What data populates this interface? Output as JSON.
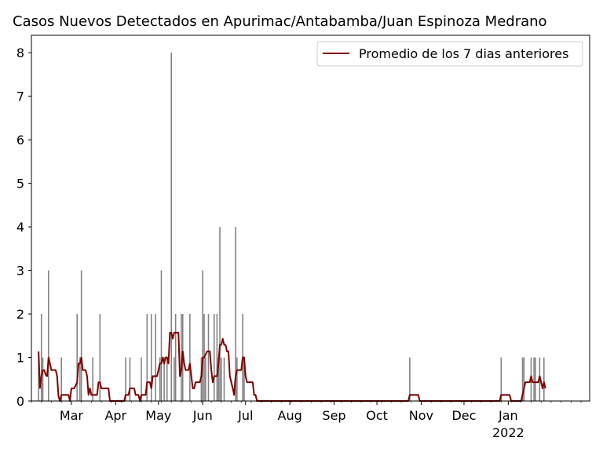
{
  "chart_data": {
    "type": "bar",
    "title": "Casos Nuevos Detectados en Apurimac/Antabamba/Juan Espinoza Medrano",
    "xlabel": "",
    "ylabel": "",
    "ylim": [
      0,
      8.4
    ],
    "xlim": [
      "2021-02-01",
      "2022-02-27"
    ],
    "y_ticks": [
      0,
      1,
      2,
      3,
      4,
      5,
      6,
      7,
      8
    ],
    "x_ticks": [
      {
        "date": "2021-03-01",
        "label": "Mar"
      },
      {
        "date": "2021-04-01",
        "label": "Apr"
      },
      {
        "date": "2021-05-01",
        "label": "May"
      },
      {
        "date": "2021-06-01",
        "label": "Jun"
      },
      {
        "date": "2021-07-01",
        "label": "Jul"
      },
      {
        "date": "2021-08-01",
        "label": "Aug"
      },
      {
        "date": "2021-09-01",
        "label": "Sep"
      },
      {
        "date": "2021-10-01",
        "label": "Oct"
      },
      {
        "date": "2021-11-01",
        "label": "Nov"
      },
      {
        "date": "2021-12-01",
        "label": "Dec"
      },
      {
        "date": "2022-01-01",
        "label": "Jan",
        "sublabel": "2022"
      }
    ],
    "grid": false,
    "legend_position": "top-right",
    "series": [
      {
        "kind": "bar",
        "color": "#808080",
        "points": [
          [
            "2021-02-06",
            1
          ],
          [
            "2021-02-08",
            2
          ],
          [
            "2021-02-09",
            1
          ],
          [
            "2021-02-13",
            3
          ],
          [
            "2021-02-22",
            1
          ],
          [
            "2021-03-05",
            2
          ],
          [
            "2021-03-07",
            1
          ],
          [
            "2021-03-08",
            3
          ],
          [
            "2021-03-16",
            1
          ],
          [
            "2021-03-21",
            2
          ],
          [
            "2021-04-08",
            1
          ],
          [
            "2021-04-11",
            1
          ],
          [
            "2021-04-19",
            1
          ],
          [
            "2021-04-23",
            2
          ],
          [
            "2021-04-26",
            2
          ],
          [
            "2021-04-29",
            2
          ],
          [
            "2021-05-02",
            1
          ],
          [
            "2021-05-03",
            3
          ],
          [
            "2021-05-05",
            1
          ],
          [
            "2021-05-07",
            1
          ],
          [
            "2021-05-10",
            8
          ],
          [
            "2021-05-12",
            1
          ],
          [
            "2021-05-13",
            2
          ],
          [
            "2021-05-17",
            2
          ],
          [
            "2021-05-18",
            2
          ],
          [
            "2021-05-23",
            2
          ],
          [
            "2021-05-31",
            1
          ],
          [
            "2021-06-01",
            3
          ],
          [
            "2021-06-02",
            2
          ],
          [
            "2021-06-03",
            1
          ],
          [
            "2021-06-05",
            2
          ],
          [
            "2021-06-09",
            2
          ],
          [
            "2021-06-11",
            2
          ],
          [
            "2021-06-12",
            1
          ],
          [
            "2021-06-13",
            4
          ],
          [
            "2021-06-14",
            1
          ],
          [
            "2021-06-16",
            1
          ],
          [
            "2021-06-24",
            4
          ],
          [
            "2021-06-25",
            1
          ],
          [
            "2021-06-29",
            2
          ],
          [
            "2021-06-30",
            1
          ],
          [
            "2021-10-24",
            1
          ],
          [
            "2021-12-27",
            1
          ],
          [
            "2022-01-11",
            1
          ],
          [
            "2022-01-12",
            1
          ],
          [
            "2022-01-17",
            1
          ],
          [
            "2022-01-19",
            1
          ],
          [
            "2022-01-20",
            1
          ],
          [
            "2022-01-23",
            1
          ],
          [
            "2022-01-26",
            1
          ]
        ]
      },
      {
        "kind": "line",
        "name": "Promedio de los 7 dias anteriores",
        "color": "#800000",
        "points": [
          [
            "2021-02-06",
            1.14
          ],
          [
            "2021-02-07",
            0.3
          ],
          [
            "2021-02-08",
            0.57
          ],
          [
            "2021-02-09",
            0.71
          ],
          [
            "2021-02-10",
            0.71
          ],
          [
            "2021-02-11",
            0.6
          ],
          [
            "2021-02-12",
            0.57
          ],
          [
            "2021-02-13",
            1.0
          ],
          [
            "2021-02-14",
            0.86
          ],
          [
            "2021-02-15",
            0.71
          ],
          [
            "2021-02-16",
            0.71
          ],
          [
            "2021-02-17",
            0.71
          ],
          [
            "2021-02-18",
            0.71
          ],
          [
            "2021-02-19",
            0.57
          ],
          [
            "2021-02-20",
            0.1
          ],
          [
            "2021-02-21",
            0.0
          ],
          [
            "2021-02-22",
            0.14
          ],
          [
            "2021-02-23",
            0.14
          ],
          [
            "2021-02-24",
            0.14
          ],
          [
            "2021-02-25",
            0.14
          ],
          [
            "2021-02-26",
            0.14
          ],
          [
            "2021-02-27",
            0.14
          ],
          [
            "2021-02-28",
            0.0
          ],
          [
            "2021-03-01",
            0.29
          ],
          [
            "2021-03-03",
            0.29
          ],
          [
            "2021-03-05",
            0.43
          ],
          [
            "2021-03-06",
            0.86
          ],
          [
            "2021-03-07",
            0.86
          ],
          [
            "2021-03-08",
            1.0
          ],
          [
            "2021-03-09",
            0.71
          ],
          [
            "2021-03-10",
            0.71
          ],
          [
            "2021-03-11",
            0.71
          ],
          [
            "2021-03-12",
            0.57
          ],
          [
            "2021-03-13",
            0.14
          ],
          [
            "2021-03-14",
            0.29
          ],
          [
            "2021-03-15",
            0.14
          ],
          [
            "2021-03-17",
            0.14
          ],
          [
            "2021-03-19",
            0.14
          ],
          [
            "2021-03-20",
            0.43
          ],
          [
            "2021-03-21",
            0.43
          ],
          [
            "2021-03-22",
            0.29
          ],
          [
            "2021-03-23",
            0.29
          ],
          [
            "2021-03-26",
            0.29
          ],
          [
            "2021-03-27",
            0.29
          ],
          [
            "2021-03-28",
            0.0
          ],
          [
            "2021-04-07",
            0.0
          ],
          [
            "2021-04-08",
            0.14
          ],
          [
            "2021-04-10",
            0.14
          ],
          [
            "2021-04-11",
            0.29
          ],
          [
            "2021-04-14",
            0.29
          ],
          [
            "2021-04-15",
            0.14
          ],
          [
            "2021-04-17",
            0.14
          ],
          [
            "2021-04-18",
            0.0
          ],
          [
            "2021-04-19",
            0.14
          ],
          [
            "2021-04-22",
            0.14
          ],
          [
            "2021-04-23",
            0.43
          ],
          [
            "2021-04-25",
            0.43
          ],
          [
            "2021-04-26",
            0.29
          ],
          [
            "2021-04-27",
            0.57
          ],
          [
            "2021-04-30",
            0.57
          ],
          [
            "2021-05-02",
            0.86
          ],
          [
            "2021-05-03",
            0.86
          ],
          [
            "2021-05-04",
            1.0
          ],
          [
            "2021-05-05",
            0.86
          ],
          [
            "2021-05-06",
            1.0
          ],
          [
            "2021-05-07",
            1.0
          ],
          [
            "2021-05-08",
            0.86
          ],
          [
            "2021-05-09",
            1.57
          ],
          [
            "2021-05-10",
            1.57
          ],
          [
            "2021-05-11",
            1.43
          ],
          [
            "2021-05-12",
            1.57
          ],
          [
            "2021-05-15",
            1.57
          ],
          [
            "2021-05-16",
            0.57
          ],
          [
            "2021-05-17",
            0.71
          ],
          [
            "2021-05-18",
            1.14
          ],
          [
            "2021-05-19",
            0.86
          ],
          [
            "2021-05-20",
            0.71
          ],
          [
            "2021-05-21",
            0.71
          ],
          [
            "2021-05-22",
            0.71
          ],
          [
            "2021-05-23",
            0.86
          ],
          [
            "2021-05-24",
            0.57
          ],
          [
            "2021-05-25",
            0.29
          ],
          [
            "2021-05-26",
            0.29
          ],
          [
            "2021-05-27",
            0.43
          ],
          [
            "2021-05-30",
            0.43
          ],
          [
            "2021-05-31",
            0.57
          ],
          [
            "2021-06-01",
            1.0
          ],
          [
            "2021-06-02",
            1.0
          ],
          [
            "2021-06-04",
            1.14
          ],
          [
            "2021-06-06",
            1.14
          ],
          [
            "2021-06-07",
            0.71
          ],
          [
            "2021-06-08",
            0.43
          ],
          [
            "2021-06-09",
            0.57
          ],
          [
            "2021-06-11",
            0.57
          ],
          [
            "2021-06-12",
            0.86
          ],
          [
            "2021-06-13",
            1.29
          ],
          [
            "2021-06-14",
            1.29
          ],
          [
            "2021-06-15",
            1.43
          ],
          [
            "2021-06-16",
            1.29
          ],
          [
            "2021-06-17",
            1.29
          ],
          [
            "2021-06-18",
            1.14
          ],
          [
            "2021-06-19",
            1.14
          ],
          [
            "2021-06-20",
            0.57
          ],
          [
            "2021-06-21",
            0.43
          ],
          [
            "2021-06-22",
            0.29
          ],
          [
            "2021-06-23",
            0.14
          ],
          [
            "2021-06-24",
            0.57
          ],
          [
            "2021-06-25",
            0.71
          ],
          [
            "2021-06-28",
            0.71
          ],
          [
            "2021-06-29",
            1.0
          ],
          [
            "2021-06-30",
            1.0
          ],
          [
            "2021-07-01",
            0.57
          ],
          [
            "2021-07-02",
            0.43
          ],
          [
            "2021-07-06",
            0.43
          ],
          [
            "2021-07-07",
            0.14
          ],
          [
            "2021-07-08",
            0.14
          ],
          [
            "2021-07-09",
            0.0
          ],
          [
            "2021-10-23",
            0.0
          ],
          [
            "2021-10-24",
            0.14
          ],
          [
            "2021-10-30",
            0.14
          ],
          [
            "2021-10-31",
            0.0
          ],
          [
            "2021-12-26",
            0.0
          ],
          [
            "2021-12-27",
            0.14
          ],
          [
            "2022-01-02",
            0.14
          ],
          [
            "2022-01-03",
            0.0
          ],
          [
            "2022-01-10",
            0.0
          ],
          [
            "2022-01-11",
            0.14
          ],
          [
            "2022-01-12",
            0.29
          ],
          [
            "2022-01-13",
            0.43
          ],
          [
            "2022-01-16",
            0.43
          ],
          [
            "2022-01-17",
            0.57
          ],
          [
            "2022-01-18",
            0.43
          ],
          [
            "2022-01-19",
            0.43
          ],
          [
            "2022-01-20",
            0.43
          ],
          [
            "2022-01-21",
            0.43
          ],
          [
            "2022-01-22",
            0.43
          ],
          [
            "2022-01-23",
            0.57
          ],
          [
            "2022-01-24",
            0.43
          ],
          [
            "2022-01-25",
            0.29
          ],
          [
            "2022-01-26",
            0.43
          ],
          [
            "2022-01-27",
            0.29
          ]
        ]
      }
    ]
  }
}
